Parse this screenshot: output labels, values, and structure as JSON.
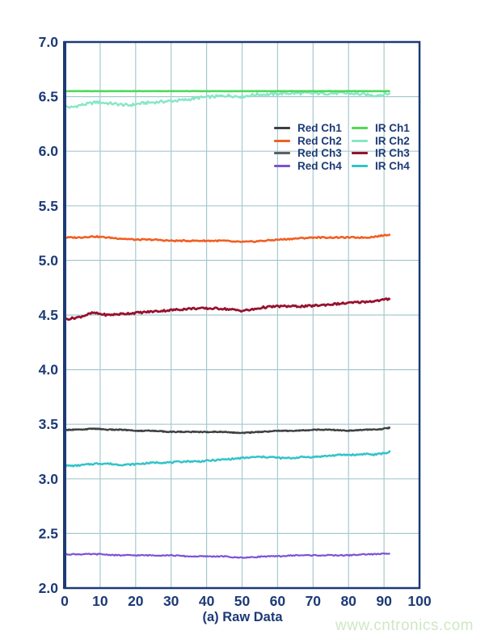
{
  "watermark": {
    "text": "www.cntronics.com",
    "color": "#cfe7c3"
  },
  "chart_data": {
    "type": "line",
    "title": "",
    "xlabel": "(a) Raw Data",
    "ylabel": "",
    "xlim": [
      0,
      100
    ],
    "ylim": [
      2.0,
      7.0
    ],
    "x_ticks": [
      0,
      10,
      20,
      30,
      40,
      50,
      60,
      70,
      80,
      90,
      100
    ],
    "y_ticks": [
      2.0,
      2.5,
      3.0,
      3.5,
      4.0,
      4.5,
      5.0,
      5.5,
      6.0,
      6.5,
      7.0
    ],
    "grid": true,
    "x_data_range": [
      0,
      92
    ],
    "axis_color": "#1c3a76",
    "grid_color": "#a6c9cf",
    "label_color": "#1c3a76",
    "legend": {
      "position": "upper-right-inside",
      "columns": [
        [
          "Red Ch1",
          "Red Ch2",
          "Red Ch3",
          "Red Ch4"
        ],
        [
          "IR Ch1",
          "IR Ch2",
          "IR Ch3",
          "IR Ch4"
        ]
      ]
    },
    "series": [
      {
        "name": "IR Ch2",
        "color": "#85e7c5",
        "width": 2.4,
        "noise": 0.013,
        "points": [
          [
            0,
            6.41
          ],
          [
            2,
            6.4
          ],
          [
            4,
            6.42
          ],
          [
            6,
            6.43
          ],
          [
            9,
            6.45
          ],
          [
            12,
            6.44
          ],
          [
            15,
            6.43
          ],
          [
            18,
            6.42
          ],
          [
            22,
            6.44
          ],
          [
            26,
            6.45
          ],
          [
            30,
            6.46
          ],
          [
            34,
            6.47
          ],
          [
            38,
            6.49
          ],
          [
            42,
            6.5
          ],
          [
            46,
            6.51
          ],
          [
            50,
            6.5
          ],
          [
            54,
            6.52
          ],
          [
            58,
            6.52
          ],
          [
            62,
            6.53
          ],
          [
            68,
            6.53
          ],
          [
            74,
            6.53
          ],
          [
            80,
            6.53
          ],
          [
            84,
            6.52
          ],
          [
            87,
            6.51
          ],
          [
            90,
            6.52
          ],
          [
            92,
            6.53
          ]
        ]
      },
      {
        "name": "IR Ch1",
        "color": "#4fd957",
        "width": 2.6,
        "noise": 0.001,
        "points": [
          [
            0,
            6.55
          ],
          [
            92,
            6.55
          ]
        ]
      },
      {
        "name": "Red Ch2",
        "color": "#f15f22",
        "width": 2.6,
        "noise": 0.006,
        "points": [
          [
            0,
            5.21
          ],
          [
            4,
            5.21
          ],
          [
            8,
            5.22
          ],
          [
            12,
            5.21
          ],
          [
            16,
            5.2
          ],
          [
            20,
            5.19
          ],
          [
            25,
            5.19
          ],
          [
            30,
            5.18
          ],
          [
            35,
            5.18
          ],
          [
            40,
            5.18
          ],
          [
            45,
            5.18
          ],
          [
            48,
            5.17
          ],
          [
            52,
            5.17
          ],
          [
            56,
            5.18
          ],
          [
            60,
            5.19
          ],
          [
            65,
            5.2
          ],
          [
            70,
            5.21
          ],
          [
            75,
            5.21
          ],
          [
            80,
            5.21
          ],
          [
            85,
            5.21
          ],
          [
            88,
            5.22
          ],
          [
            92,
            5.24
          ]
        ]
      },
      {
        "name": "IR Ch3",
        "color": "#97122e",
        "width": 2.8,
        "noise": 0.009,
        "points": [
          [
            0,
            4.46
          ],
          [
            2,
            4.47
          ],
          [
            4,
            4.48
          ],
          [
            6,
            4.5
          ],
          [
            8,
            4.52
          ],
          [
            10,
            4.51
          ],
          [
            12,
            4.5
          ],
          [
            16,
            4.51
          ],
          [
            20,
            4.52
          ],
          [
            24,
            4.53
          ],
          [
            28,
            4.54
          ],
          [
            32,
            4.55
          ],
          [
            36,
            4.56
          ],
          [
            40,
            4.56
          ],
          [
            44,
            4.56
          ],
          [
            47,
            4.55
          ],
          [
            50,
            4.54
          ],
          [
            53,
            4.55
          ],
          [
            56,
            4.57
          ],
          [
            60,
            4.58
          ],
          [
            64,
            4.58
          ],
          [
            68,
            4.58
          ],
          [
            72,
            4.59
          ],
          [
            76,
            4.6
          ],
          [
            80,
            4.61
          ],
          [
            84,
            4.62
          ],
          [
            88,
            4.63
          ],
          [
            90,
            4.64
          ],
          [
            92,
            4.65
          ]
        ]
      },
      {
        "name": "Red Ch3",
        "color": "#5d5f61",
        "width": 2.2,
        "noise": 0.005,
        "points": [
          [
            0,
            3.45
          ],
          [
            5,
            3.45
          ],
          [
            8,
            3.46
          ],
          [
            12,
            3.45
          ],
          [
            16,
            3.45
          ],
          [
            20,
            3.44
          ],
          [
            25,
            3.44
          ],
          [
            30,
            3.43
          ],
          [
            35,
            3.43
          ],
          [
            40,
            3.43
          ],
          [
            45,
            3.43
          ],
          [
            50,
            3.42
          ],
          [
            55,
            3.43
          ],
          [
            60,
            3.44
          ],
          [
            65,
            3.44
          ],
          [
            70,
            3.45
          ],
          [
            75,
            3.45
          ],
          [
            80,
            3.44
          ],
          [
            85,
            3.45
          ],
          [
            88,
            3.45
          ],
          [
            92,
            3.47
          ]
        ]
      },
      {
        "name": "Red Ch1",
        "color": "#3d4042",
        "width": 2.2,
        "noise": 0.005,
        "points": [
          [
            0,
            3.45
          ],
          [
            5,
            3.45
          ],
          [
            8,
            3.46
          ],
          [
            12,
            3.45
          ],
          [
            16,
            3.45
          ],
          [
            20,
            3.44
          ],
          [
            25,
            3.44
          ],
          [
            30,
            3.43
          ],
          [
            35,
            3.43
          ],
          [
            40,
            3.43
          ],
          [
            45,
            3.43
          ],
          [
            50,
            3.42
          ],
          [
            55,
            3.43
          ],
          [
            60,
            3.44
          ],
          [
            65,
            3.44
          ],
          [
            70,
            3.45
          ],
          [
            75,
            3.45
          ],
          [
            80,
            3.44
          ],
          [
            85,
            3.45
          ],
          [
            88,
            3.45
          ],
          [
            92,
            3.47
          ]
        ]
      },
      {
        "name": "IR Ch4",
        "color": "#33c3c9",
        "width": 2.5,
        "noise": 0.007,
        "points": [
          [
            0,
            3.12
          ],
          [
            3,
            3.12
          ],
          [
            6,
            3.13
          ],
          [
            9,
            3.14
          ],
          [
            12,
            3.14
          ],
          [
            15,
            3.13
          ],
          [
            18,
            3.13
          ],
          [
            22,
            3.14
          ],
          [
            26,
            3.15
          ],
          [
            30,
            3.15
          ],
          [
            34,
            3.16
          ],
          [
            38,
            3.16
          ],
          [
            42,
            3.17
          ],
          [
            46,
            3.18
          ],
          [
            50,
            3.19
          ],
          [
            54,
            3.2
          ],
          [
            58,
            3.2
          ],
          [
            61,
            3.19
          ],
          [
            64,
            3.19
          ],
          [
            67,
            3.2
          ],
          [
            70,
            3.2
          ],
          [
            74,
            3.21
          ],
          [
            78,
            3.22
          ],
          [
            82,
            3.22
          ],
          [
            85,
            3.23
          ],
          [
            87,
            3.22
          ],
          [
            89,
            3.23
          ],
          [
            91,
            3.24
          ],
          [
            92,
            3.26
          ]
        ]
      },
      {
        "name": "Red Ch4",
        "color": "#7b52d6",
        "width": 2.2,
        "noise": 0.005,
        "points": [
          [
            0,
            2.31
          ],
          [
            5,
            2.31
          ],
          [
            10,
            2.31
          ],
          [
            15,
            2.3
          ],
          [
            20,
            2.3
          ],
          [
            25,
            2.3
          ],
          [
            30,
            2.3
          ],
          [
            35,
            2.29
          ],
          [
            40,
            2.29
          ],
          [
            45,
            2.29
          ],
          [
            48,
            2.28
          ],
          [
            52,
            2.28
          ],
          [
            56,
            2.29
          ],
          [
            60,
            2.29
          ],
          [
            65,
            2.3
          ],
          [
            70,
            2.3
          ],
          [
            75,
            2.3
          ],
          [
            80,
            2.3
          ],
          [
            85,
            2.31
          ],
          [
            88,
            2.31
          ],
          [
            92,
            2.32
          ]
        ]
      }
    ]
  }
}
